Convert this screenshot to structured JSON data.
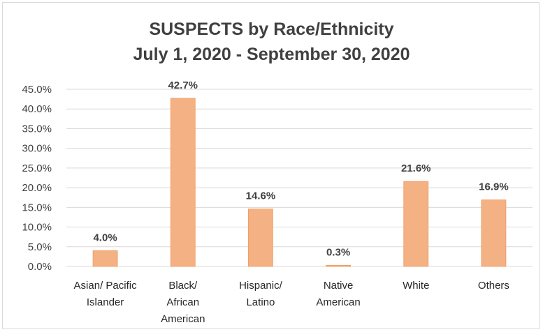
{
  "chart_data": {
    "type": "bar",
    "title": "SUSPECTS by Race/Ethnicity",
    "subtitle": "July 1, 2020 - September 30, 2020",
    "categories": [
      [
        "Asian/ Pacific",
        "Islander"
      ],
      [
        "Black/",
        "African",
        "American"
      ],
      [
        "Hispanic/",
        "Latino"
      ],
      [
        "Native",
        "American"
      ],
      [
        "White"
      ],
      [
        "Others"
      ]
    ],
    "values": [
      4.0,
      42.7,
      14.6,
      0.3,
      21.6,
      16.9
    ],
    "data_labels": [
      "4.0%",
      "42.7%",
      "14.6%",
      "0.3%",
      "21.6%",
      "16.9%"
    ],
    "yticks": [
      "0.0%",
      "5.0%",
      "10.0%",
      "15.0%",
      "20.0%",
      "25.0%",
      "30.0%",
      "35.0%",
      "40.0%",
      "45.0%"
    ],
    "ylim": [
      0,
      45
    ],
    "grid": true,
    "colors": {
      "bar": "#F4B183",
      "bar_edge": "#F09A5E",
      "grid": "#D9D9D9",
      "text": "#404040"
    }
  }
}
